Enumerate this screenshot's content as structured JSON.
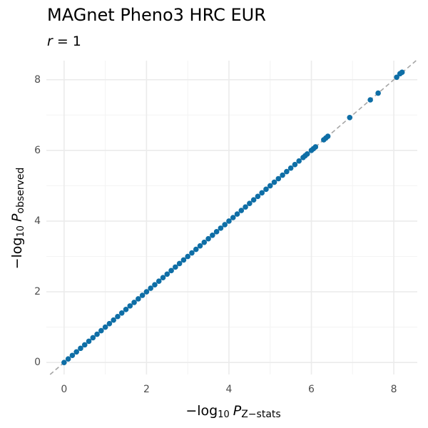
{
  "chart_data": {
    "type": "scatter",
    "title": "MAGnet Pheno3 HRC EUR",
    "subtitle_var": "r",
    "subtitle_rest": "= 1",
    "x_label": {
      "prefix": "−log",
      "base": "10",
      "var": "P",
      "sub": "Z−stats"
    },
    "y_label": {
      "prefix": "−log",
      "base": "10",
      "var": "P",
      "sub": "observed"
    },
    "color": "#0e6ea6",
    "reference_line_color": "#a6a6a6",
    "grid": true,
    "xlim": [
      -0.43,
      8.57
    ],
    "ylim": [
      -0.34,
      8.54
    ],
    "xticks": [
      0,
      2,
      4,
      6,
      8
    ],
    "yticks": [
      0,
      2,
      4,
      6,
      8
    ],
    "series": [
      {
        "name": "SNPs",
        "color": "#0e6ea6",
        "x": [
          0,
          0.1,
          0.2,
          0.3,
          0.4,
          0.5,
          0.6,
          0.7,
          0.8,
          0.9,
          1.0,
          1.1,
          1.2,
          1.3,
          1.4,
          1.5,
          1.6,
          1.7,
          1.8,
          1.9,
          2.0,
          2.1,
          2.2,
          2.3,
          2.4,
          2.5,
          2.6,
          2.7,
          2.8,
          2.9,
          3.0,
          3.1,
          3.2,
          3.3,
          3.4,
          3.5,
          3.6,
          3.7,
          3.8,
          3.9,
          4.0,
          4.1,
          4.2,
          4.3,
          4.4,
          4.5,
          4.6,
          4.7,
          4.8,
          4.9,
          5.0,
          5.1,
          5.2,
          5.3,
          5.4,
          5.5,
          5.6,
          5.7,
          5.8,
          5.85,
          5.9,
          6.0,
          6.05,
          6.1,
          6.3,
          6.35,
          6.4,
          6.93,
          7.43,
          7.62,
          8.07,
          8.15,
          8.2
        ],
        "values": [
          0,
          0.1,
          0.2,
          0.3,
          0.4,
          0.5,
          0.6,
          0.7,
          0.8,
          0.9,
          1.0,
          1.1,
          1.2,
          1.3,
          1.4,
          1.5,
          1.6,
          1.7,
          1.8,
          1.9,
          2.0,
          2.1,
          2.2,
          2.3,
          2.4,
          2.5,
          2.6,
          2.7,
          2.8,
          2.9,
          3.0,
          3.1,
          3.2,
          3.3,
          3.4,
          3.5,
          3.6,
          3.7,
          3.8,
          3.9,
          4.0,
          4.1,
          4.2,
          4.3,
          4.4,
          4.5,
          4.6,
          4.7,
          4.8,
          4.9,
          5.0,
          5.1,
          5.2,
          5.3,
          5.4,
          5.5,
          5.6,
          5.7,
          5.8,
          5.85,
          5.9,
          6.0,
          6.05,
          6.1,
          6.3,
          6.35,
          6.4,
          6.93,
          7.43,
          7.62,
          8.07,
          8.17,
          8.21
        ]
      }
    ]
  }
}
